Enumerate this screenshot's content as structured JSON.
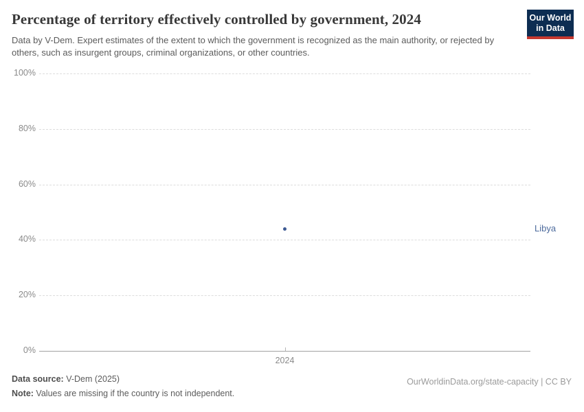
{
  "header": {
    "title": "Percentage of territory effectively controlled by government, 2024",
    "subtitle": "Data by V-Dem. Expert estimates of the extent to which the government is recognized as the main authority, or rejected by others, such as insurgent groups, criminal organizations, or other countries.",
    "logo": {
      "line1": "Our World",
      "line2": "in Data"
    }
  },
  "chart_data": {
    "type": "scatter",
    "title": "Percentage of territory effectively controlled by government, 2024",
    "x": [
      2024
    ],
    "series": [
      {
        "name": "Libya",
        "values": [
          44
        ],
        "color": "#3d5a93"
      }
    ],
    "xticks": [
      "2024"
    ],
    "yticks": [
      {
        "value": 0,
        "label": "0%"
      },
      {
        "value": 20,
        "label": "20%"
      },
      {
        "value": 40,
        "label": "40%"
      },
      {
        "value": 60,
        "label": "60%"
      },
      {
        "value": 80,
        "label": "80%"
      },
      {
        "value": 100,
        "label": "100%"
      }
    ],
    "ylim": [
      0,
      100
    ],
    "grid": "horizontal-dashed",
    "legend_position": "entity-label-right"
  },
  "footer": {
    "source_label": "Data source:",
    "source_text": " V-Dem (2025)",
    "note_label": "Note:",
    "note_text": " Values are missing if the country is not independent.",
    "link_text": "OurWorldinData.org/state-capacity | CC BY"
  },
  "colors": {
    "logo_navy": "#0d2d52",
    "logo_red": "#c5382f",
    "point_blue": "#3d5a93",
    "entity_label_blue": "#4c6a9c",
    "gridline": "#dcdcdc",
    "axis_line": "#a1a1a1",
    "tick_text": "#8a8a8a"
  }
}
